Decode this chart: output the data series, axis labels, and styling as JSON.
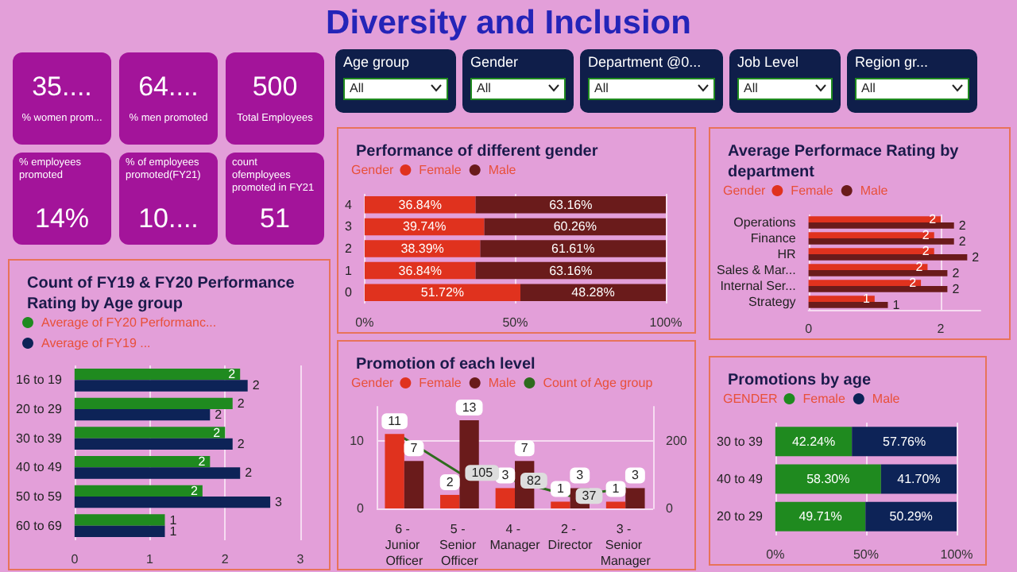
{
  "chart_data": [
    {
      "type": "other",
      "title": "Diversity and Inclusion"
    },
    {
      "type": "other",
      "annotations": [
        "35....",
        "% women prom...",
        "64....",
        "% men promoted",
        "500",
        "Total  Employees",
        "14%",
        "% employees promoted",
        "10....",
        "% of employees promoted(FY21)",
        "51",
        "count ofemployees promoted in FY21"
      ]
    },
    {
      "type": "other",
      "annotations": [
        "Age group",
        "All",
        "Gender",
        "All",
        "Department @0...",
        "All",
        "Job Level",
        "All",
        "Region gr...",
        "All"
      ]
    },
    {
      "type": "bar",
      "orientation": "horizontal",
      "title": "Count of FY19 & FY20 Performance Rating by Age group",
      "categories": [
        "16 to 19",
        "20 to 29",
        "30 to 39",
        "40 to 49",
        "50 to 59",
        "60 to 69"
      ],
      "series": [
        {
          "name": "Average of FY20 Performanc...",
          "color": "#1f8a1f",
          "values": [
            2.2,
            2.1,
            2.0,
            1.8,
            1.7,
            1.2
          ],
          "value_labels": [
            "2",
            "2",
            "2",
            "2",
            "2",
            "1"
          ]
        },
        {
          "name": "Average of FY19 ...",
          "color": "#0d2357",
          "values": [
            2.3,
            1.8,
            2.1,
            2.2,
            2.6,
            1.2
          ],
          "value_labels": [
            "2",
            "2",
            "2",
            "2",
            "3",
            "1"
          ]
        }
      ],
      "xlim": [
        0,
        3
      ],
      "xticks": [
        0,
        1,
        2,
        3
      ],
      "grid": "x",
      "legend": "top left"
    },
    {
      "type": "bar",
      "orientation": "horizontal",
      "stacked": true,
      "title": "Performance of different gender",
      "legend_title": "Gender",
      "categories": [
        "4",
        "3",
        "2",
        "1",
        "0"
      ],
      "series": [
        {
          "name": "Female",
          "color": "#e0321e",
          "values": [
            36.84,
            39.74,
            38.39,
            36.84,
            51.72
          ],
          "value_labels": [
            "36.84%",
            "39.74%",
            "38.39%",
            "36.84%",
            "51.72%"
          ]
        },
        {
          "name": "Male",
          "color": "#6a1b1b",
          "values": [
            63.16,
            60.26,
            61.61,
            63.16,
            48.28
          ],
          "value_labels": [
            "63.16%",
            "60.26%",
            "61.61%",
            "63.16%",
            "48.28%"
          ]
        }
      ],
      "xlim": [
        0,
        100
      ],
      "xticks": [
        {
          "value": 0,
          "label": "0%"
        },
        {
          "value": 50,
          "label": "50%"
        },
        {
          "value": 100,
          "label": "100%"
        }
      ],
      "grid": "x",
      "legend": "top left"
    },
    {
      "type": "bar",
      "orientation": "horizontal",
      "title": "Average Performace Rating by department",
      "legend_title": "Gender",
      "categories": [
        "Operations",
        "Finance",
        "HR",
        "Sales & Mar...",
        "Internal Ser...",
        "Strategy"
      ],
      "series": [
        {
          "name": "Female",
          "color": "#e0321e",
          "values": [
            2.0,
            1.9,
            1.9,
            1.8,
            1.7,
            1.0
          ],
          "value_labels": [
            "2",
            "2",
            "2",
            "2",
            "2",
            "1"
          ]
        },
        {
          "name": "Male",
          "color": "#6a1b1b",
          "values": [
            2.2,
            2.2,
            2.4,
            2.1,
            2.1,
            1.2
          ],
          "value_labels": [
            "2",
            "2",
            "2",
            "2",
            "2",
            "1"
          ]
        }
      ],
      "xlim": [
        0,
        2.6
      ],
      "xticks": [
        0,
        2
      ],
      "grid": "x",
      "legend": "top left"
    },
    {
      "type": "bar",
      "title": "Promotion of each level",
      "legend_title": "Gender",
      "categories": [
        "6 - Junior Officer",
        "5 - Senior Officer",
        "4 - Manager",
        "2 - Director",
        "3 - Senior Manager"
      ],
      "series": [
        {
          "name": "Female",
          "color": "#e0321e",
          "values": [
            11,
            2,
            3,
            1,
            1
          ],
          "value_labels": [
            "11",
            "2",
            "3",
            "1",
            "1"
          ]
        },
        {
          "name": "Male",
          "color": "#6a1b1b",
          "values": [
            7,
            13,
            7,
            3,
            3
          ],
          "value_labels": [
            "7",
            "13",
            "7",
            "3",
            "3"
          ]
        },
        {
          "name": "Count of Age group",
          "type": "line",
          "axis": "y2",
          "color": "#2e6b1e",
          "values": [
            207,
            105,
            82,
            37,
            59
          ],
          "value_labels": [
            null,
            "105",
            "82",
            "37",
            null
          ]
        }
      ],
      "ylim": [
        0,
        15
      ],
      "yticks": [
        0,
        10
      ],
      "y2lim": [
        0,
        300
      ],
      "y2ticks": [
        0,
        200
      ],
      "grid": "y",
      "legend": "top left",
      "marker": "none",
      "line_style": "solid"
    },
    {
      "type": "bar",
      "orientation": "horizontal",
      "stacked": true,
      "title": "Promotions by age",
      "legend_title": "GENDER",
      "categories": [
        "30 to 39",
        "40 to 49",
        "20 to 29"
      ],
      "series": [
        {
          "name": "Female",
          "color": "#1f8a1f",
          "values": [
            42.24,
            58.3,
            49.71
          ],
          "value_labels": [
            "42.24%",
            "58.30%",
            "49.71%"
          ]
        },
        {
          "name": "Male",
          "color": "#0d2357",
          "values": [
            57.76,
            41.7,
            50.29
          ],
          "value_labels": [
            "57.76%",
            "41.70%",
            "50.29%"
          ]
        }
      ],
      "xlim": [
        0,
        100
      ],
      "xticks": [
        {
          "value": 0,
          "label": "0%"
        },
        {
          "value": 50,
          "label": "50%"
        },
        {
          "value": 100,
          "label": "100%"
        }
      ],
      "grid": "x",
      "legend": "top left"
    }
  ]
}
